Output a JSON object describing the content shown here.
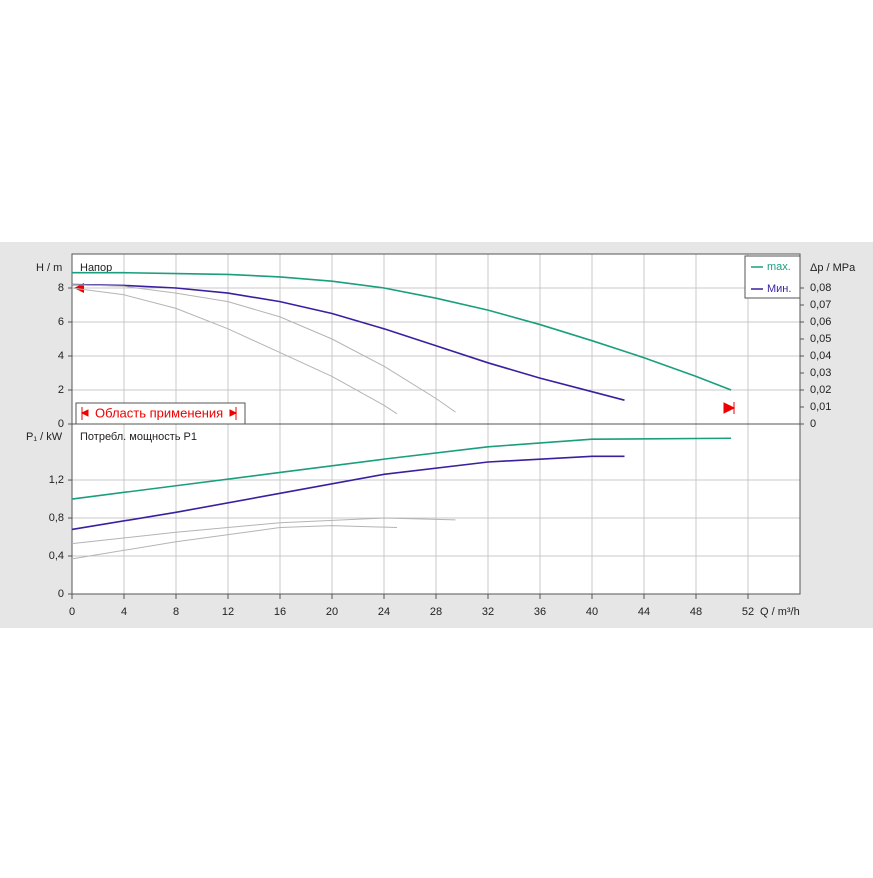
{
  "chart_data": [
    {
      "type": "line",
      "y_label": "H / m",
      "title": "Напор",
      "y2_label": "Δp / MPa",
      "annotation": "Область применения",
      "xlim": [
        0,
        56
      ],
      "ylim": [
        0,
        10
      ],
      "yticks": [
        0,
        2,
        4,
        6,
        8
      ],
      "y2lim": [
        0,
        0.1
      ],
      "y2ticks": [
        0,
        {
          "value": 0.01,
          "label": "0,01"
        },
        {
          "value": 0.02,
          "label": "0,02"
        },
        {
          "value": 0.03,
          "label": "0,03"
        },
        {
          "value": 0.04,
          "label": "0,04"
        },
        {
          "value": 0.05,
          "label": "0,05"
        },
        {
          "value": 0.06,
          "label": "0,06"
        },
        {
          "value": 0.07,
          "label": "0,07"
        },
        {
          "value": 0.08,
          "label": "0,08"
        }
      ],
      "grid": true,
      "legend": "upper right",
      "series": [
        {
          "name": "max.",
          "color": "#1a9e7e",
          "x": [
            0,
            4,
            8,
            12,
            16,
            20,
            24,
            28,
            32,
            36,
            40,
            44,
            48,
            50.7
          ],
          "values": [
            8.9,
            8.9,
            8.85,
            8.8,
            8.65,
            8.4,
            8.0,
            7.4,
            6.7,
            5.85,
            4.9,
            3.9,
            2.8,
            2.0
          ]
        },
        {
          "name": "Мин.",
          "color": "#3a1fa0",
          "x": [
            0,
            4,
            8,
            12,
            16,
            20,
            24,
            28,
            32,
            36,
            40,
            42.5
          ],
          "values": [
            8.2,
            8.15,
            8.0,
            7.7,
            7.2,
            6.5,
            5.6,
            4.6,
            3.6,
            2.7,
            1.9,
            1.4
          ]
        },
        {
          "color": "#b4b4b4",
          "x": [
            0,
            4,
            8,
            12,
            16,
            20,
            24,
            25
          ],
          "values": [
            8.0,
            7.6,
            6.8,
            5.6,
            4.2,
            2.8,
            1.1,
            0.6
          ]
        },
        {
          "color": "#b4b4b4",
          "x": [
            0,
            4,
            8,
            12,
            16,
            20,
            24,
            28,
            29.5
          ],
          "values": [
            8.2,
            8.1,
            7.7,
            7.2,
            6.3,
            5.0,
            3.4,
            1.5,
            0.7
          ]
        }
      ]
    },
    {
      "type": "line",
      "y_label": "P₁ / kW",
      "title": "Потребл. мощность P1",
      "x_label": "Q / m³/h",
      "xlim": [
        0,
        56
      ],
      "xticks": [
        0,
        4,
        8,
        12,
        16,
        20,
        24,
        28,
        32,
        36,
        40,
        44,
        48,
        52
      ],
      "ylim": [
        0,
        1.79
      ],
      "yticks": [
        0,
        {
          "value": 0.4,
          "label": "0,4"
        },
        {
          "value": 0.8,
          "label": "0,8"
        },
        {
          "value": 1.2,
          "label": "1,2"
        }
      ],
      "grid": true,
      "series": [
        {
          "name": "max.",
          "color": "#1a9e7e",
          "x": [
            0,
            8,
            16,
            24,
            32,
            40,
            50.7
          ],
          "values": [
            1.0,
            1.14,
            1.28,
            1.42,
            1.55,
            1.63,
            1.64
          ]
        },
        {
          "name": "Мин.",
          "color": "#3a1fa0",
          "x": [
            0,
            8,
            16,
            24,
            32,
            40,
            42.5
          ],
          "values": [
            0.68,
            0.86,
            1.06,
            1.26,
            1.39,
            1.45,
            1.45
          ]
        },
        {
          "color": "#b4b4b4",
          "x": [
            0,
            8,
            16,
            20,
            25
          ],
          "values": [
            0.37,
            0.55,
            0.7,
            0.72,
            0.7
          ]
        },
        {
          "color": "#b4b4b4",
          "x": [
            0,
            8,
            16,
            24,
            29.5
          ],
          "values": [
            0.53,
            0.65,
            0.75,
            0.8,
            0.78
          ]
        }
      ]
    }
  ]
}
